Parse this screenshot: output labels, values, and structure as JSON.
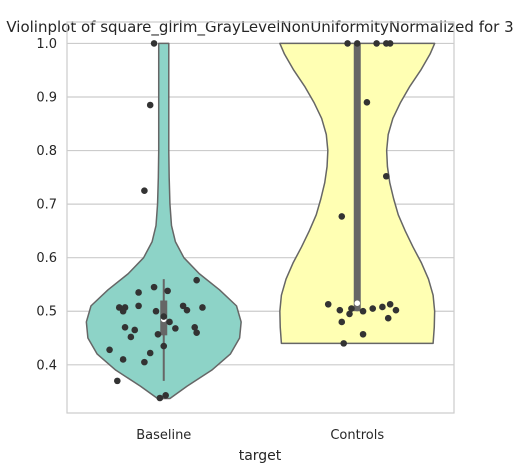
{
  "chart_data": {
    "type": "violin",
    "title": "Violinplot of square_glrlm_GrayLevelNonUniformityNormalized for 3",
    "xlabel": "target",
    "ylabel": "",
    "ylim": [
      0.31,
      1.04
    ],
    "yticks": [
      0.4,
      0.5,
      0.6,
      0.7,
      0.8,
      0.9,
      1.0
    ],
    "ytick_labels": [
      "0.4",
      "0.5",
      "0.6",
      "0.7",
      "0.8",
      "0.9",
      "1.0"
    ],
    "grid": true,
    "categories": [
      "Baseline",
      "Controls"
    ],
    "series": [
      {
        "category": "Baseline",
        "color": "#8dd3c7",
        "violin_range": [
          0.337,
          1.0
        ],
        "violin_profile": [
          [
            0.337,
            0.08
          ],
          [
            0.36,
            0.3
          ],
          [
            0.39,
            0.62
          ],
          [
            0.42,
            0.86
          ],
          [
            0.45,
            0.98
          ],
          [
            0.48,
            1.0
          ],
          [
            0.51,
            0.94
          ],
          [
            0.54,
            0.72
          ],
          [
            0.57,
            0.46
          ],
          [
            0.6,
            0.26
          ],
          [
            0.63,
            0.15
          ],
          [
            0.66,
            0.1
          ],
          [
            0.7,
            0.08
          ],
          [
            0.75,
            0.07
          ],
          [
            0.8,
            0.065
          ],
          [
            0.85,
            0.065
          ],
          [
            0.9,
            0.065
          ],
          [
            0.95,
            0.065
          ],
          [
            1.0,
            0.065
          ]
        ],
        "whisker": [
          0.37,
          0.56
        ],
        "iqr": [
          0.455,
          0.52
        ],
        "median": 0.485,
        "points": [
          [
            -0.05,
            1.0
          ],
          [
            -0.07,
            0.885
          ],
          [
            -0.1,
            0.725
          ],
          [
            0.17,
            0.558
          ],
          [
            -0.05,
            0.545
          ],
          [
            0.02,
            0.538
          ],
          [
            -0.13,
            0.535
          ],
          [
            -0.13,
            0.51
          ],
          [
            -0.23,
            0.507
          ],
          [
            -0.2,
            0.507
          ],
          [
            0.1,
            0.51
          ],
          [
            0.2,
            0.507
          ],
          [
            0.12,
            0.502
          ],
          [
            -0.21,
            0.5
          ],
          [
            -0.04,
            0.5
          ],
          [
            0.0,
            0.49
          ],
          [
            0.03,
            0.48
          ],
          [
            -0.2,
            0.47
          ],
          [
            -0.15,
            0.465
          ],
          [
            0.16,
            0.47
          ],
          [
            0.06,
            0.468
          ],
          [
            0.17,
            0.46
          ],
          [
            -0.03,
            0.457
          ],
          [
            -0.17,
            0.452
          ],
          [
            0.0,
            0.435
          ],
          [
            -0.28,
            0.428
          ],
          [
            -0.07,
            0.422
          ],
          [
            -0.21,
            0.41
          ],
          [
            -0.1,
            0.405
          ],
          [
            -0.24,
            0.37
          ],
          [
            0.01,
            0.343
          ],
          [
            -0.02,
            0.338
          ]
        ]
      },
      {
        "category": "Controls",
        "color": "#ffffb3",
        "violin_range": [
          0.44,
          1.0
        ],
        "violin_profile": [
          [
            0.44,
            0.98
          ],
          [
            0.47,
            0.995
          ],
          [
            0.5,
            1.0
          ],
          [
            0.53,
            0.98
          ],
          [
            0.56,
            0.92
          ],
          [
            0.59,
            0.83
          ],
          [
            0.62,
            0.72
          ],
          [
            0.65,
            0.62
          ],
          [
            0.68,
            0.53
          ],
          [
            0.71,
            0.47
          ],
          [
            0.74,
            0.42
          ],
          [
            0.77,
            0.39
          ],
          [
            0.8,
            0.38
          ],
          [
            0.83,
            0.4
          ],
          [
            0.86,
            0.46
          ],
          [
            0.89,
            0.56
          ],
          [
            0.92,
            0.68
          ],
          [
            0.95,
            0.82
          ],
          [
            0.98,
            0.94
          ],
          [
            1.0,
            1.0
          ]
        ],
        "whisker": [
          0.5,
          1.0
        ],
        "iqr": [
          0.5,
          1.0
        ],
        "median": 0.515,
        "points": [
          [
            -0.05,
            1.0
          ],
          [
            0.0,
            1.0
          ],
          [
            0.1,
            1.0
          ],
          [
            0.15,
            1.0
          ],
          [
            0.17,
            1.0
          ],
          [
            0.05,
            0.89
          ],
          [
            0.15,
            0.752
          ],
          [
            -0.08,
            0.677
          ],
          [
            -0.15,
            0.513
          ],
          [
            0.17,
            0.513
          ],
          [
            0.13,
            0.508
          ],
          [
            0.08,
            0.505
          ],
          [
            -0.03,
            0.505
          ],
          [
            -0.09,
            0.502
          ],
          [
            0.2,
            0.502
          ],
          [
            0.03,
            0.5
          ],
          [
            -0.04,
            0.495
          ],
          [
            0.16,
            0.487
          ],
          [
            -0.08,
            0.48
          ],
          [
            0.03,
            0.457
          ],
          [
            -0.07,
            0.44
          ]
        ]
      }
    ]
  }
}
